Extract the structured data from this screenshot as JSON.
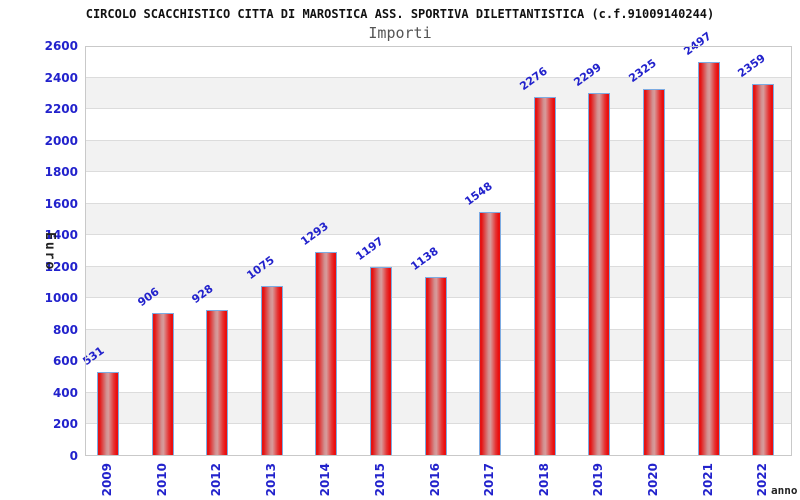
{
  "chart_data": {
    "type": "bar",
    "title": "CIRCOLO SCACCHISTICO CITTA DI MAROSTICA ASS. SPORTIVA DILETTANTISTICA (c.f.91009140244)",
    "subtitle": "Importi",
    "ylabel": "Euro",
    "xlabel": "anno",
    "categories": [
      "2009",
      "2010",
      "2012",
      "2013",
      "2014",
      "2015",
      "2016",
      "2017",
      "2018",
      "2019",
      "2020",
      "2021",
      "2022"
    ],
    "values": [
      531,
      906,
      928,
      1075,
      1293,
      1197,
      1138,
      1548,
      2276,
      2299,
      2325,
      2497,
      2359
    ],
    "ylim": [
      0,
      2600
    ],
    "ytick_step": 200,
    "grid": "horizontal-on",
    "legend": "none",
    "band_alternating": true,
    "value_labels_rotated_deg": -36,
    "xtick_rotation_deg": 90
  },
  "colors": {
    "bar_fill_edge": "#e51313",
    "bar_fill_center": "#d69898",
    "bar_border": "#7cabe2",
    "axis_label_blue": "#2222cc",
    "band_gray": "#f2f2f2",
    "gridline": "#dcdcdc",
    "plot_border": "#c9c9c9",
    "title_color": "#111111",
    "subtitle_color": "#555555",
    "axis_title_color": "#222222"
  }
}
